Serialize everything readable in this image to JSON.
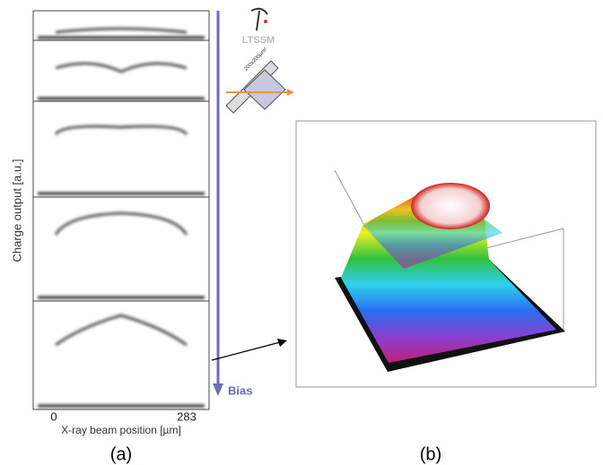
{
  "figure_a": {
    "y_label": "Charge output [a.u.]",
    "x_label": "X-ray beam position [µm]",
    "x_tick_start": 0,
    "x_tick_end": 283,
    "arrow_label": "Bias",
    "logo_text": "LTSSM",
    "pixel_label": "200x200µm²",
    "caption": "(a)"
  },
  "figure_b": {
    "caption": "(b)"
  }
}
